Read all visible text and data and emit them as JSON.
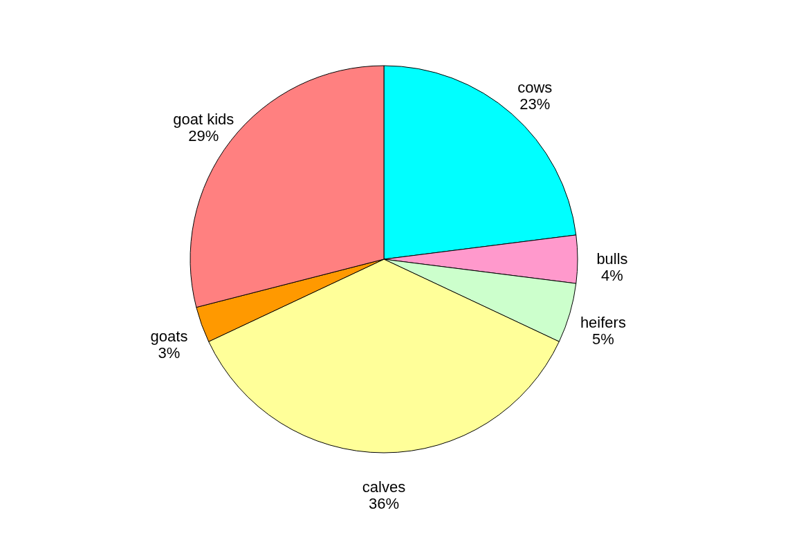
{
  "chart_data": {
    "type": "pie",
    "categories": [
      "cows",
      "bulls",
      "heifers",
      "calves",
      "goats",
      "goat kids"
    ],
    "values": [
      23,
      4,
      5,
      36,
      3,
      29
    ],
    "value_labels": [
      "23%",
      "4%",
      "5%",
      "36%",
      "3%",
      "29%"
    ],
    "colors": [
      "#00ffff",
      "#ff99cc",
      "#ccffcc",
      "#ffff99",
      "#ff9900",
      "#ff8080"
    ],
    "legend": false
  }
}
